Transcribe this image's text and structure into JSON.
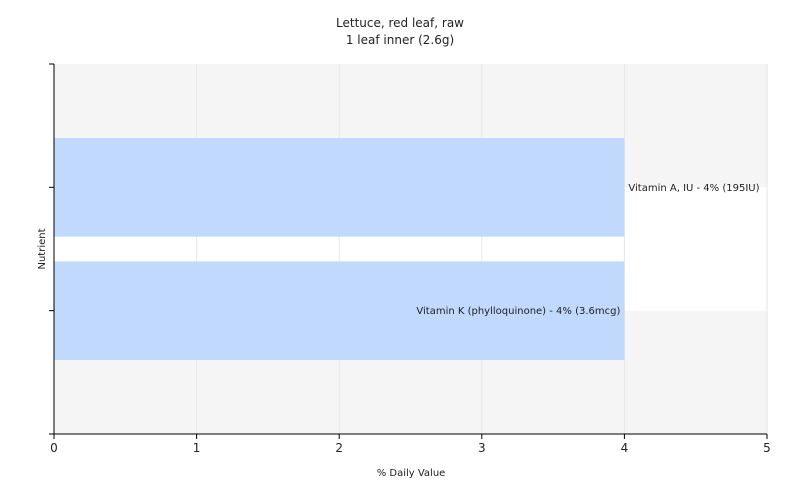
{
  "chart_data": {
    "type": "bar",
    "orientation": "horizontal",
    "title": "Lettuce, red leaf, raw",
    "subtitle": "1 leaf inner (2.6g)",
    "xlabel": "% Daily Value",
    "ylabel": "Nutrient",
    "xlim": [
      0,
      5
    ],
    "x_ticks": [
      "0",
      "1",
      "2",
      "3",
      "4",
      "5"
    ],
    "grid": true,
    "categories": [
      "Vitamin A, IU",
      "Vitamin K (phylloquinone)"
    ],
    "values": [
      4,
      4
    ],
    "data_labels": [
      "Vitamin A, IU - 4% (195IU)",
      "Vitamin K (phylloquinone) - 4% (3.6mcg)"
    ],
    "colors": {
      "bar": "#c0d9fc",
      "band_light": "#f5f5f5",
      "gridline": "#e6e6e6",
      "axis": "#000000"
    }
  }
}
